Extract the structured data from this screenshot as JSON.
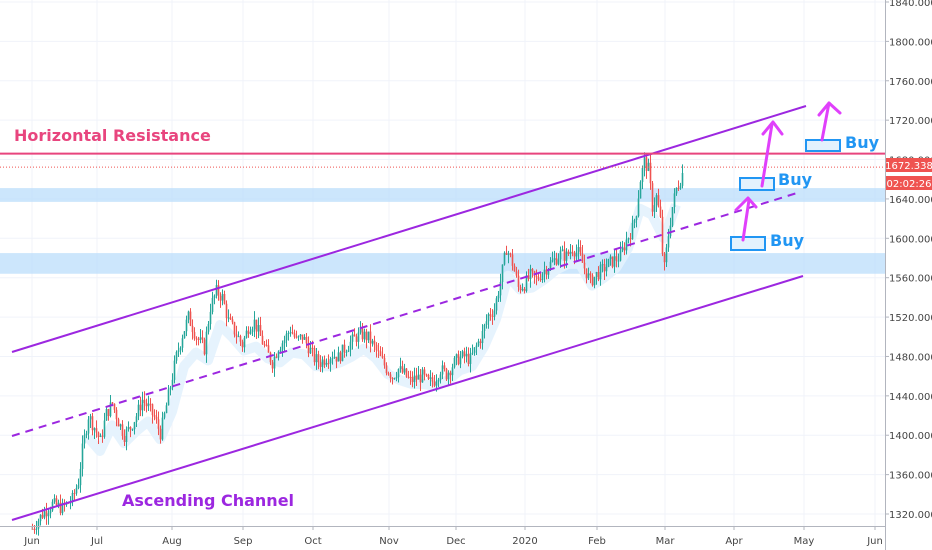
{
  "chart_data": {
    "type": "candlestick",
    "ylim": [
      1305,
      1850
    ],
    "y_ticks": [
      "1840.000",
      "1800.000",
      "1760.000",
      "1720.000",
      "1680.000",
      "1640.000",
      "1600.000",
      "1560.000",
      "1520.000",
      "1480.000",
      "1440.000",
      "1400.000",
      "1360.000",
      "1320.000"
    ],
    "x_ticks": [
      "Jun",
      "Jul",
      "Aug",
      "Sep",
      "Oct",
      "Nov",
      "Dec",
      "2020",
      "Feb",
      "Mar",
      "Apr",
      "May",
      "Jun"
    ],
    "price_label": "1672.338",
    "time_label": "02:02:26",
    "horizontal_resistance": 1686,
    "support_zones": [
      [
        1637,
        1651
      ],
      [
        1564,
        1585
      ]
    ],
    "annotations": {
      "resistance": "Horizontal Resistance",
      "channel": "Ascending Channel",
      "buy1": "Buy",
      "buy2": "Buy",
      "buy3": "Buy"
    },
    "colors": {
      "up": "#26a69a",
      "down": "#ef5350",
      "channel": "#9c27e0",
      "resistance": "#e8457e",
      "zone": "#bbdefb",
      "buy": "#2196f3",
      "arrow": "#e040fb",
      "price_tag": "#ef5350"
    },
    "path": [
      [
        0,
        1305
      ],
      [
        5,
        1320
      ],
      [
        10,
        1330
      ],
      [
        15,
        1326
      ],
      [
        20,
        1335
      ],
      [
        23,
        1353
      ],
      [
        25,
        1385
      ],
      [
        28,
        1420
      ],
      [
        31,
        1408
      ],
      [
        34,
        1394
      ],
      [
        37,
        1422
      ],
      [
        40,
        1432
      ],
      [
        43,
        1414
      ],
      [
        46,
        1400
      ],
      [
        49,
        1408
      ],
      [
        52,
        1420
      ],
      [
        55,
        1436
      ],
      [
        58,
        1428
      ],
      [
        61,
        1418
      ],
      [
        64,
        1402
      ],
      [
        66,
        1420
      ],
      [
        69,
        1450
      ],
      [
        72,
        1480
      ],
      [
        75,
        1502
      ],
      [
        78,
        1520
      ],
      [
        82,
        1500
      ],
      [
        86,
        1488
      ],
      [
        89,
        1530
      ],
      [
        92,
        1546
      ],
      [
        95,
        1540
      ],
      [
        98,
        1516
      ],
      [
        101,
        1506
      ],
      [
        105,
        1492
      ],
      [
        108,
        1510
      ],
      [
        111,
        1515
      ],
      [
        114,
        1500
      ],
      [
        117,
        1485
      ],
      [
        120,
        1474
      ],
      [
        123,
        1490
      ],
      [
        126,
        1497
      ],
      [
        129,
        1508
      ],
      [
        132,
        1496
      ],
      [
        135,
        1500
      ],
      [
        138,
        1490
      ],
      [
        141,
        1478
      ],
      [
        144,
        1474
      ],
      [
        147,
        1479
      ],
      [
        150,
        1482
      ],
      [
        153,
        1479
      ],
      [
        156,
        1488
      ],
      [
        159,
        1494
      ],
      [
        162,
        1500
      ],
      [
        165,
        1502
      ],
      [
        168,
        1499
      ],
      [
        171,
        1489
      ],
      [
        174,
        1478
      ],
      [
        177,
        1468
      ],
      [
        180,
        1460
      ],
      [
        183,
        1467
      ],
      [
        186,
        1462
      ],
      [
        189,
        1455
      ],
      [
        192,
        1458
      ],
      [
        195,
        1460
      ],
      [
        198,
        1453
      ],
      [
        201,
        1456
      ],
      [
        204,
        1467
      ],
      [
        207,
        1462
      ],
      [
        210,
        1471
      ],
      [
        213,
        1478
      ],
      [
        216,
        1480
      ],
      [
        219,
        1477
      ],
      [
        222,
        1490
      ],
      [
        225,
        1503
      ],
      [
        228,
        1522
      ],
      [
        231,
        1528
      ],
      [
        234,
        1556
      ],
      [
        237,
        1590
      ],
      [
        240,
        1575
      ],
      [
        243,
        1550
      ],
      [
        246,
        1553
      ],
      [
        249,
        1562
      ],
      [
        252,
        1558
      ],
      [
        255,
        1566
      ],
      [
        258,
        1572
      ],
      [
        261,
        1578
      ],
      [
        264,
        1584
      ],
      [
        267,
        1582
      ],
      [
        270,
        1590
      ],
      [
        273,
        1585
      ],
      [
        276,
        1570
      ],
      [
        279,
        1556
      ],
      [
        282,
        1563
      ],
      [
        285,
        1568
      ],
      [
        288,
        1574
      ],
      [
        291,
        1578
      ],
      [
        294,
        1582
      ],
      [
        297,
        1598
      ],
      [
        300,
        1610
      ],
      [
        302,
        1628
      ],
      [
        304,
        1660
      ],
      [
        306,
        1678
      ],
      [
        308,
        1670
      ],
      [
        310,
        1632
      ],
      [
        312,
        1642
      ],
      [
        314,
        1618
      ],
      [
        315,
        1586
      ],
      [
        316,
        1570
      ],
      [
        318,
        1604
      ],
      [
        320,
        1632
      ],
      [
        322,
        1650
      ],
      [
        324,
        1660
      ],
      [
        326,
        1672
      ]
    ],
    "shadow_path": [
      [
        28,
        1398
      ],
      [
        34,
        1384
      ],
      [
        40,
        1410
      ],
      [
        46,
        1392
      ],
      [
        52,
        1404
      ],
      [
        58,
        1414
      ],
      [
        64,
        1396
      ],
      [
        70,
        1424
      ],
      [
        76,
        1470
      ],
      [
        82,
        1484
      ],
      [
        88,
        1476
      ],
      [
        94,
        1512
      ],
      [
        100,
        1500
      ],
      [
        106,
        1486
      ],
      [
        112,
        1490
      ],
      [
        118,
        1478
      ],
      [
        124,
        1474
      ],
      [
        130,
        1484
      ],
      [
        136,
        1482
      ],
      [
        142,
        1470
      ],
      [
        148,
        1470
      ],
      [
        154,
        1474
      ],
      [
        160,
        1480
      ],
      [
        166,
        1488
      ],
      [
        172,
        1478
      ],
      [
        178,
        1462
      ],
      [
        184,
        1456
      ],
      [
        190,
        1452
      ],
      [
        196,
        1452
      ],
      [
        202,
        1450
      ],
      [
        208,
        1456
      ],
      [
        214,
        1466
      ],
      [
        220,
        1470
      ],
      [
        226,
        1490
      ],
      [
        232,
        1518
      ],
      [
        238,
        1562
      ],
      [
        244,
        1548
      ],
      [
        250,
        1550
      ],
      [
        256,
        1558
      ],
      [
        262,
        1568
      ],
      [
        268,
        1574
      ],
      [
        274,
        1574
      ],
      [
        280,
        1552
      ],
      [
        286,
        1560
      ],
      [
        292,
        1570
      ],
      [
        298,
        1590
      ],
      [
        304,
        1630
      ],
      [
        310,
        1624
      ],
      [
        316,
        1600
      ],
      [
        322,
        1634
      ]
    ]
  }
}
